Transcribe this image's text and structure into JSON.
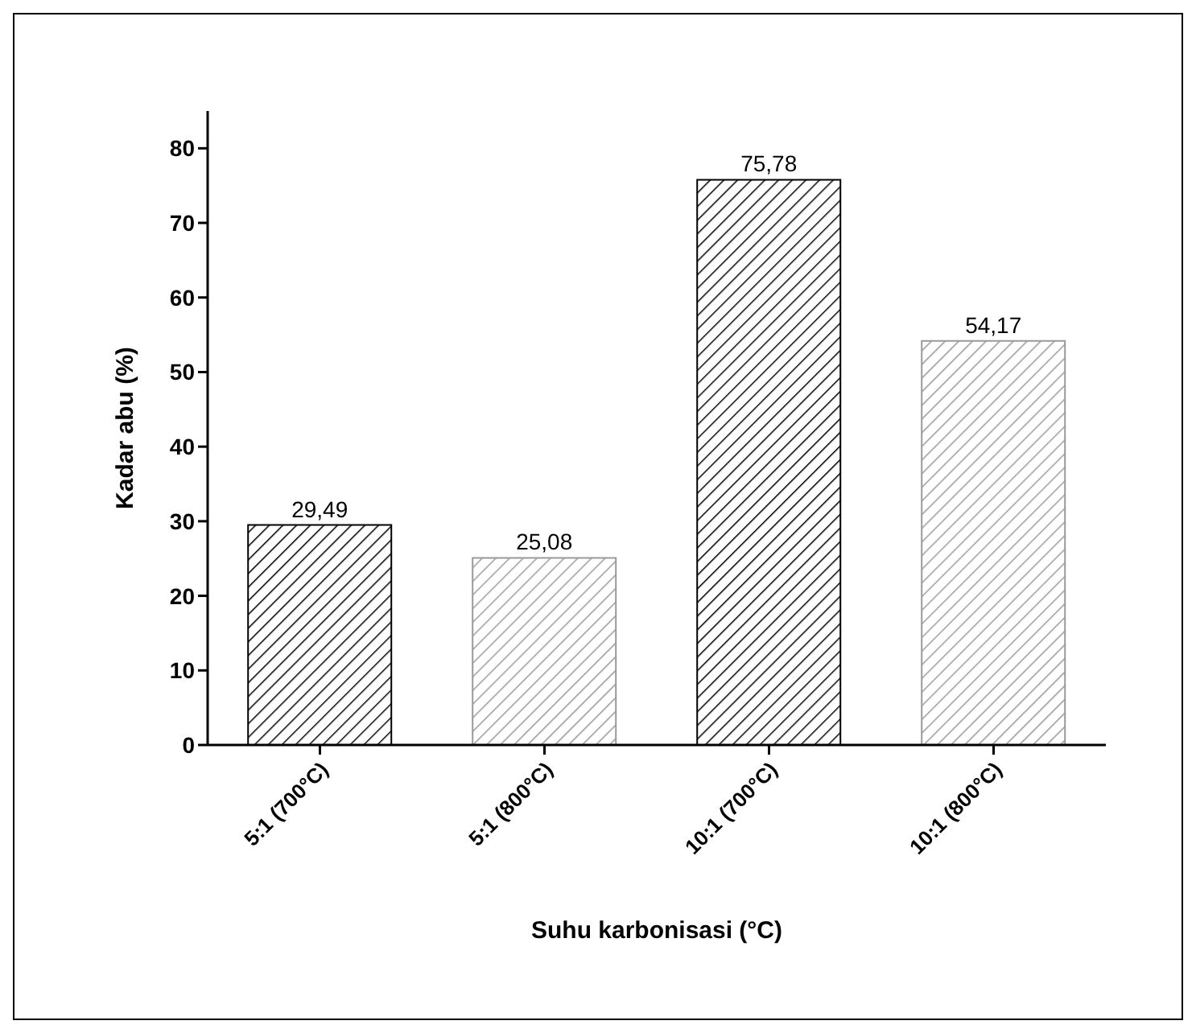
{
  "chart_data": {
    "type": "bar",
    "xlabel": "Suhu karbonisasi (°C)",
    "ylabel": "Kadar abu (%)",
    "categories": [
      "5:1 (700°C)",
      "5:1 (800°C)",
      "10:1 (700°C)",
      "10:1 (800°C)"
    ],
    "values": [
      29.49,
      25.08,
      75.78,
      54.17
    ],
    "value_labels": [
      "29,49",
      "25,08",
      "75,78",
      "54,17"
    ],
    "colors": [
      "#000000",
      "#9a9a9a",
      "#000000",
      "#9a9a9a"
    ],
    "ylim": [
      0,
      85
    ],
    "yticks": [
      0,
      10,
      20,
      30,
      40,
      50,
      60,
      70,
      80
    ],
    "grid": false,
    "legend": false
  }
}
